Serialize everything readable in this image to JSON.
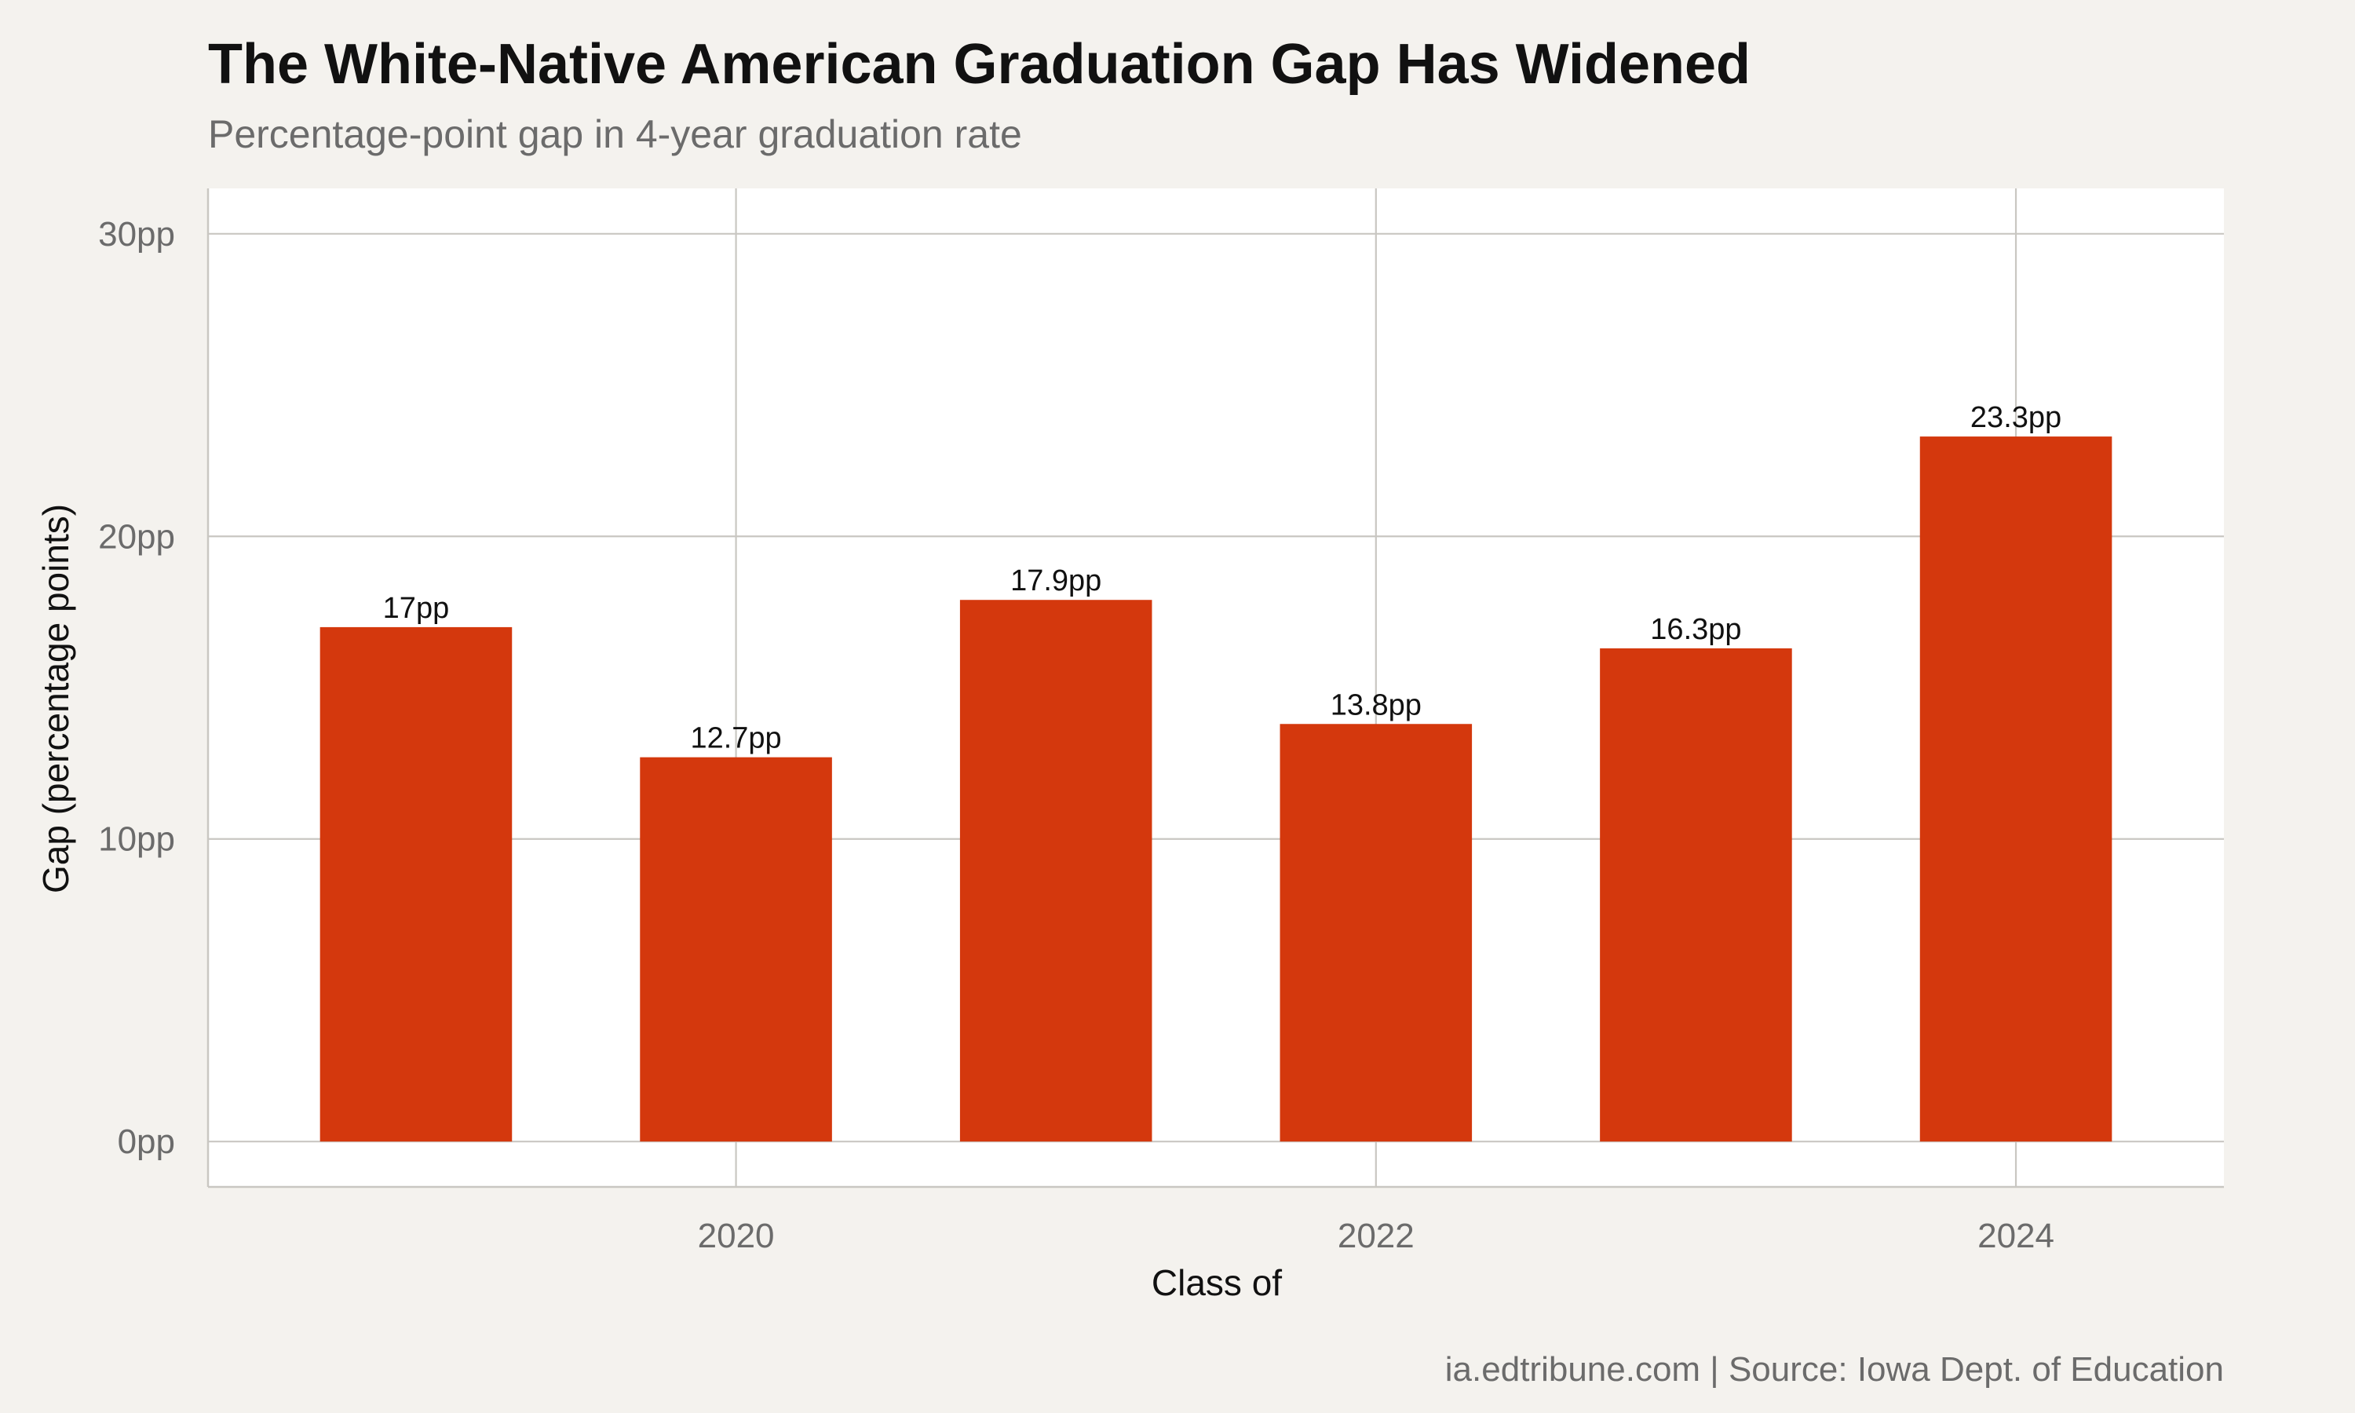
{
  "colors": {
    "background": "#f4f2ee",
    "panel": "#ffffff",
    "bar": "#d4380d",
    "grid": "#c9c7c2",
    "title": "#111111",
    "subtitle": "#6b6b6b",
    "tick": "#6b6b6b",
    "axis_title": "#111111"
  },
  "chart_data": {
    "type": "bar",
    "title": "The White-Native American Graduation Gap Has Widened",
    "subtitle": "Percentage-point gap in 4-year graduation rate",
    "xlabel": "Class of",
    "ylabel": "Gap (percentage points)",
    "caption": "ia.edtribune.com | Source: Iowa Dept. of Education",
    "x": [
      2019,
      2020,
      2021,
      2022,
      2023,
      2024
    ],
    "values": [
      17.0,
      12.7,
      17.9,
      13.8,
      16.3,
      23.3
    ],
    "value_labels": [
      "17pp",
      "12.7pp",
      "17.9pp",
      "13.8pp",
      "16.3pp",
      "23.3pp"
    ],
    "x_ticks": [
      2020,
      2022,
      2024
    ],
    "x_tick_labels": [
      "2020",
      "2022",
      "2024"
    ],
    "y_ticks": [
      0,
      10,
      20,
      30
    ],
    "y_tick_labels": [
      "0pp",
      "10pp",
      "20pp",
      "30pp"
    ],
    "ylim": [
      -1.5,
      31.5
    ],
    "xlim": [
      2018.35,
      2024.65
    ],
    "grid": true,
    "legend": "none"
  }
}
